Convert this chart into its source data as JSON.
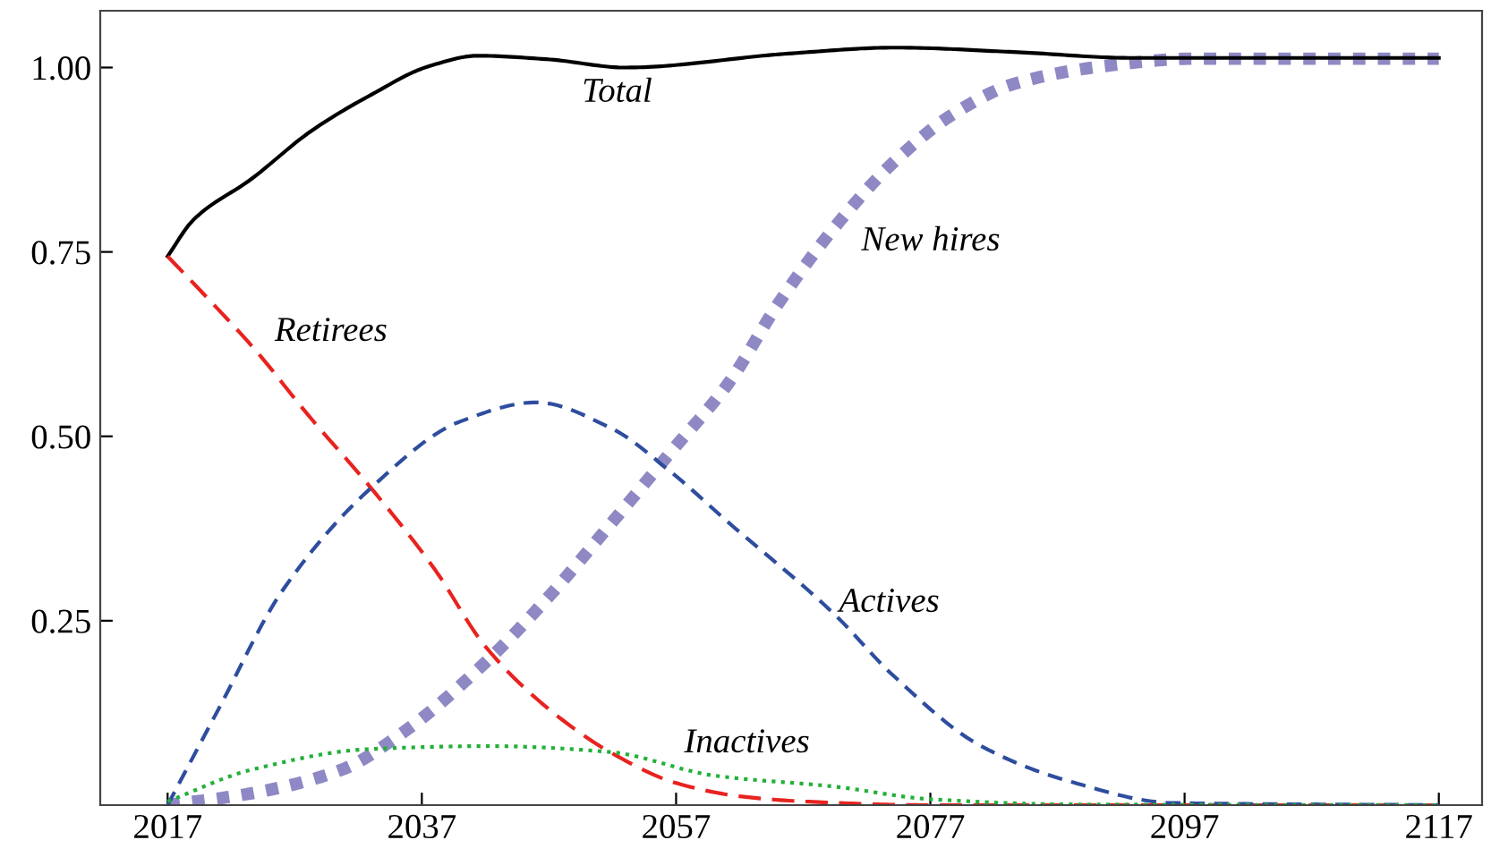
{
  "chart_data": {
    "type": "line",
    "series": [
      {
        "name": "Total",
        "color": "#000000",
        "line_style": "solid",
        "x": [
          2017,
          2019,
          2023.6,
          2028.3,
          2032.9,
          2037.6,
          2041.4,
          2047,
          2053,
          2065.9,
          2074.2,
          2083.6,
          2093,
          2117
        ],
        "values": [
          0.744,
          0.793,
          0.849,
          0.914,
          0.962,
          1.002,
          1.016,
          1.011,
          1.0,
          1.019,
          1.027,
          1.021,
          1.013,
          1.013
        ]
      },
      {
        "name": "Retirees",
        "color": "#e8231f",
        "line_style": "dashed",
        "x": [
          2017,
          2020,
          2024,
          2028,
          2033,
          2038,
          2042,
          2047,
          2052,
          2057,
          2062,
          2067,
          2077,
          2117
        ],
        "values": [
          0.744,
          0.69,
          0.615,
          0.53,
          0.43,
          0.32,
          0.215,
          0.13,
          0.07,
          0.03,
          0.012,
          0.005,
          0,
          0
        ]
      },
      {
        "name": "Actives",
        "color": "#2e4d9e",
        "line_style": "dashed",
        "x": [
          2017,
          2021,
          2026,
          2033,
          2040,
          2046,
          2052,
          2056.5,
          2061,
          2069.5,
          2074,
          2081,
          2088,
          2096,
          2117
        ],
        "values": [
          0,
          0.13,
          0.29,
          0.43,
          0.52,
          0.546,
          0.51,
          0.453,
          0.385,
          0.258,
          0.177,
          0.08,
          0.032,
          0.003,
          0
        ]
      },
      {
        "name": "Inactives",
        "color": "#22b03a",
        "line_style": "dotted",
        "x": [
          2017,
          2023.6,
          2032.9,
          2042.4,
          2051.8,
          2060,
          2069.5,
          2077,
          2088,
          2117
        ],
        "values": [
          0.005,
          0.048,
          0.076,
          0.08,
          0.072,
          0.04,
          0.025,
          0.008,
          0.001,
          0
        ]
      },
      {
        "name": "New hires",
        "color": "#8e89c4",
        "line_style": "dotted",
        "x": [
          2017,
          2023.6,
          2030.7,
          2035.4,
          2042.4,
          2047,
          2051.8,
          2056.5,
          2061.2,
          2065,
          2069.5,
          2074.2,
          2078.9,
          2083.6,
          2090.7,
          2097.7,
          2117
        ],
        "values": [
          0,
          0.016,
          0.048,
          0.097,
          0.2,
          0.283,
          0.38,
          0.477,
          0.574,
          0.679,
          0.784,
          0.873,
          0.938,
          0.978,
          1.002,
          1.012,
          1.012
        ]
      }
    ],
    "xlim": [
      2011.7,
      2120.4
    ],
    "ylim": [
      0,
      1.077
    ],
    "xticks": [
      2017,
      2037,
      2057,
      2077,
      2097,
      2117
    ],
    "yticks": [
      {
        "value": 0.25,
        "label": "0.25"
      },
      {
        "value": 0.5,
        "label": "0.50"
      },
      {
        "value": 0.75,
        "label": "0.75"
      },
      {
        "value": 1,
        "label": "1.00"
      }
    ],
    "grid": false,
    "legend": false
  }
}
